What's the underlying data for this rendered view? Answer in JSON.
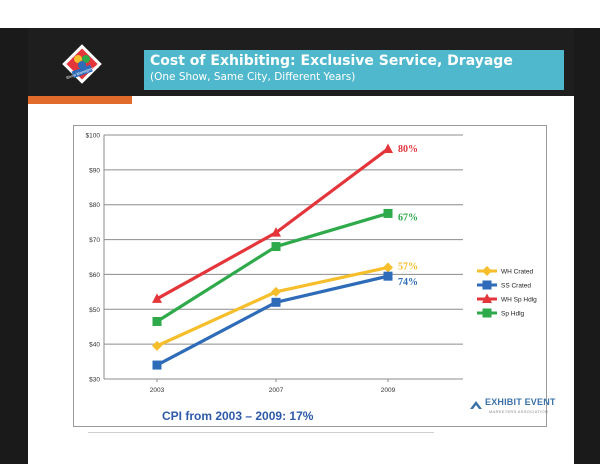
{
  "slide": {
    "title": "Cost of Exhibiting: Exclusive Service, Drayage",
    "subtitle": "(One Show, Same City, Different Years)",
    "footnote": "CPI from 2003 – 2009:  17%",
    "logo_text": "Show Management",
    "footer_brand": "EXHIBIT EVENT",
    "footer_sub": "MARKETERS ASSOCIATION"
  },
  "colors": {
    "title_bg": "#4fb8cc",
    "accent_orange": "#e06b2a",
    "footnote_blue": "#2e5aa8"
  },
  "chart_data": {
    "type": "line",
    "x": [
      "2003",
      "2007",
      "2009"
    ],
    "ylim": [
      30,
      100
    ],
    "yticks": [
      30,
      40,
      50,
      60,
      70,
      80,
      90,
      100
    ],
    "ytick_labels": [
      "$30",
      "$40",
      "$50",
      "$60",
      "$70",
      "$80",
      "$90",
      "$100"
    ],
    "grid": true,
    "legend_position": "right",
    "series": [
      {
        "name": "WH Crated",
        "color": "#f5be2a",
        "marker": "diamond",
        "values": [
          39.5,
          55,
          62
        ],
        "end_label": "57%"
      },
      {
        "name": "SS Crated",
        "color": "#2e6bb8",
        "marker": "square",
        "values": [
          34,
          52,
          59.5
        ],
        "end_label": "74%"
      },
      {
        "name": "WH Sp Hdlg",
        "color": "#e3353a",
        "marker": "triangle",
        "values": [
          53,
          72,
          96
        ],
        "end_label": "80%"
      },
      {
        "name": "Sp Hdlg",
        "color": "#2eaa4a",
        "marker": "square",
        "values": [
          46.5,
          68,
          77.5
        ],
        "end_label": "67%"
      }
    ]
  }
}
